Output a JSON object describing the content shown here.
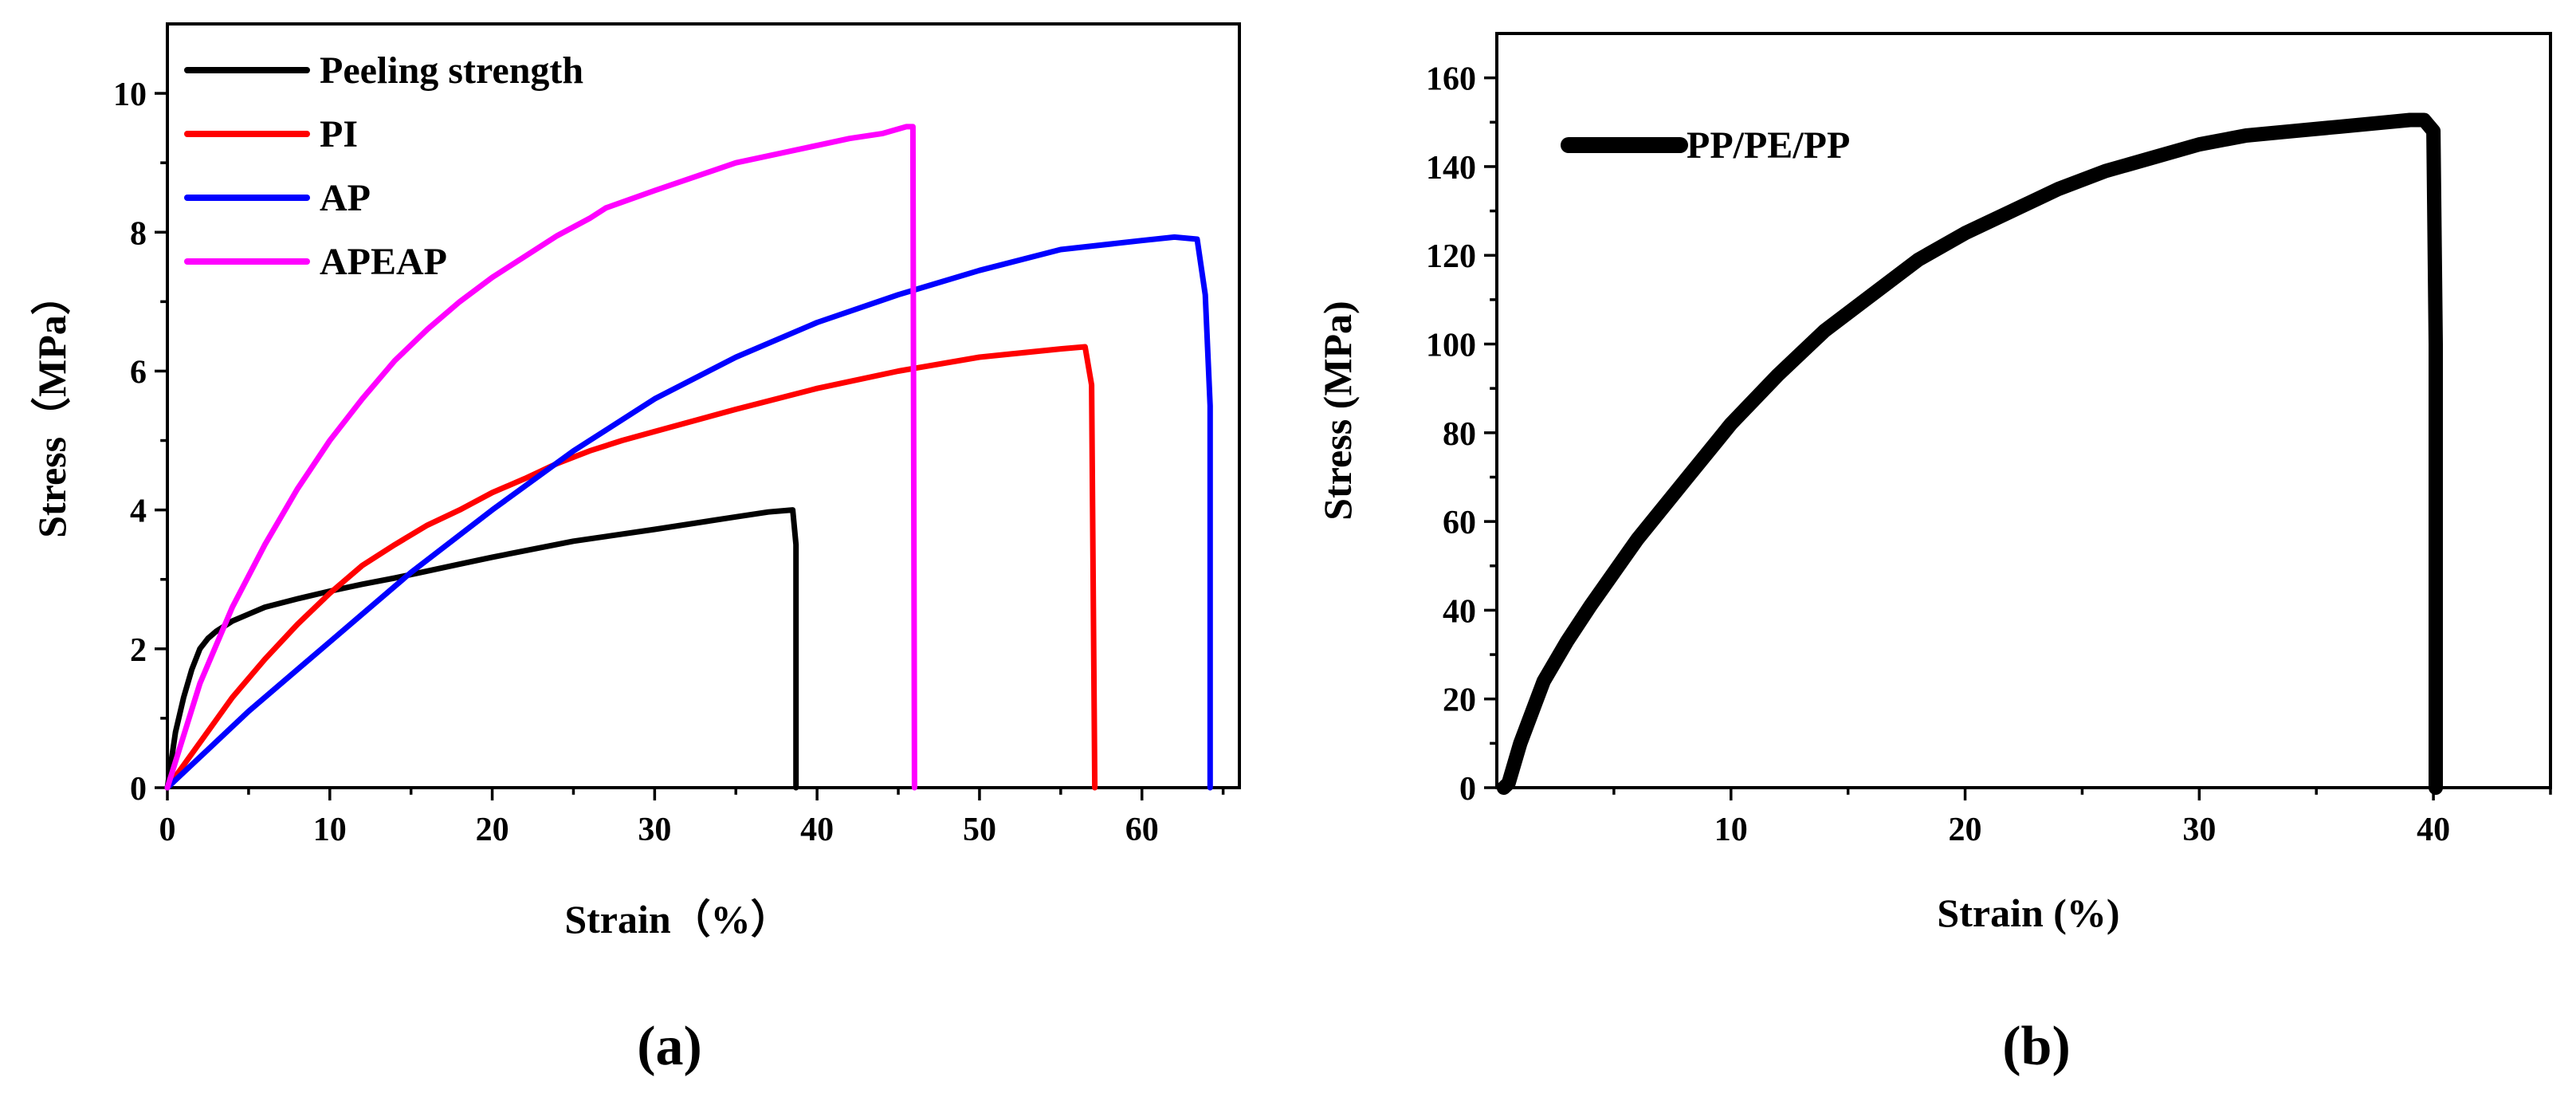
{
  "chart_data": [
    {
      "type": "line",
      "panel_label": "(a)",
      "xlabel": "Strain（%）",
      "ylabel": "Stress（MPa）",
      "xlim": [
        0,
        66
      ],
      "ylim": [
        0,
        11
      ],
      "xticks": [
        0,
        10,
        20,
        30,
        40,
        50,
        60
      ],
      "yticks": [
        0,
        2,
        4,
        6,
        8,
        10
      ],
      "legend_position": "top-left",
      "series": [
        {
          "name": "Peeling strength",
          "color": "#000000",
          "x": [
            0,
            0.5,
            1,
            1.5,
            2,
            2.5,
            3,
            4,
            5,
            6,
            8,
            10,
            12,
            14,
            16,
            18,
            20,
            25,
            30,
            35,
            37,
            38.5,
            38.7,
            38.7
          ],
          "y": [
            0,
            0.8,
            1.3,
            1.7,
            2.0,
            2.15,
            2.25,
            2.4,
            2.5,
            2.6,
            2.72,
            2.83,
            2.93,
            3.02,
            3.12,
            3.22,
            3.32,
            3.55,
            3.72,
            3.9,
            3.97,
            4.0,
            3.5,
            0
          ]
        },
        {
          "name": "PI",
          "color": "#ff0000",
          "x": [
            0,
            2,
            4,
            6,
            8,
            10,
            12,
            14,
            16,
            18,
            20,
            22,
            24,
            26,
            28,
            30,
            35,
            40,
            45,
            50,
            55,
            56.5,
            56.9,
            57.1
          ],
          "y": [
            0,
            0.65,
            1.3,
            1.85,
            2.35,
            2.8,
            3.2,
            3.5,
            3.78,
            4.0,
            4.25,
            4.45,
            4.67,
            4.85,
            5.0,
            5.13,
            5.45,
            5.75,
            6.0,
            6.2,
            6.32,
            6.35,
            5.8,
            0
          ]
        },
        {
          "name": "AP",
          "color": "#0000ff",
          "x": [
            0,
            5,
            10,
            15,
            20,
            25,
            30,
            35,
            40,
            45,
            50,
            55,
            60,
            62,
            63.4,
            63.9,
            64.2,
            64.2
          ],
          "y": [
            0,
            1.1,
            2.1,
            3.1,
            4.0,
            4.85,
            5.6,
            6.2,
            6.7,
            7.1,
            7.45,
            7.75,
            7.88,
            7.93,
            7.9,
            7.1,
            5.5,
            0
          ]
        },
        {
          "name": "APEAP",
          "color": "#ff00ff",
          "x": [
            0,
            2,
            4,
            6,
            8,
            10,
            12,
            14,
            16,
            18,
            20,
            22,
            24,
            26,
            27,
            30,
            35,
            40,
            42,
            44,
            45.5,
            45.9,
            46
          ],
          "y": [
            0,
            1.5,
            2.6,
            3.5,
            4.3,
            5.0,
            5.6,
            6.15,
            6.6,
            7.0,
            7.35,
            7.65,
            7.95,
            8.2,
            8.35,
            8.6,
            9.0,
            9.25,
            9.35,
            9.42,
            9.52,
            9.52,
            0
          ]
        }
      ]
    },
    {
      "type": "line",
      "panel_label": "(b)",
      "xlabel": "Strain (%)",
      "ylabel": "Stress (MPa)",
      "xlim": [
        0,
        45
      ],
      "ylim": [
        0,
        170
      ],
      "xticks": [
        10,
        20,
        30,
        40
      ],
      "yticks": [
        0,
        20,
        40,
        60,
        80,
        100,
        120,
        140,
        160
      ],
      "legend_position": "top-left",
      "series": [
        {
          "name": "PP/PE/PP",
          "color": "#000000",
          "x": [
            0.3,
            0.5,
            1,
            1.5,
            2,
            3,
            4,
            6,
            8,
            10,
            12,
            14,
            16,
            18,
            20,
            22,
            24,
            26,
            28,
            30,
            32,
            34,
            36,
            38,
            39,
            39.6,
            40,
            40.1,
            40.1
          ],
          "y": [
            0,
            1,
            10,
            17,
            24,
            33,
            41,
            56,
            69,
            82,
            93,
            103,
            111,
            119,
            125,
            130,
            135,
            139,
            142,
            145,
            147,
            148,
            149,
            150,
            150.5,
            150.5,
            148,
            100,
            0
          ]
        }
      ]
    }
  ]
}
